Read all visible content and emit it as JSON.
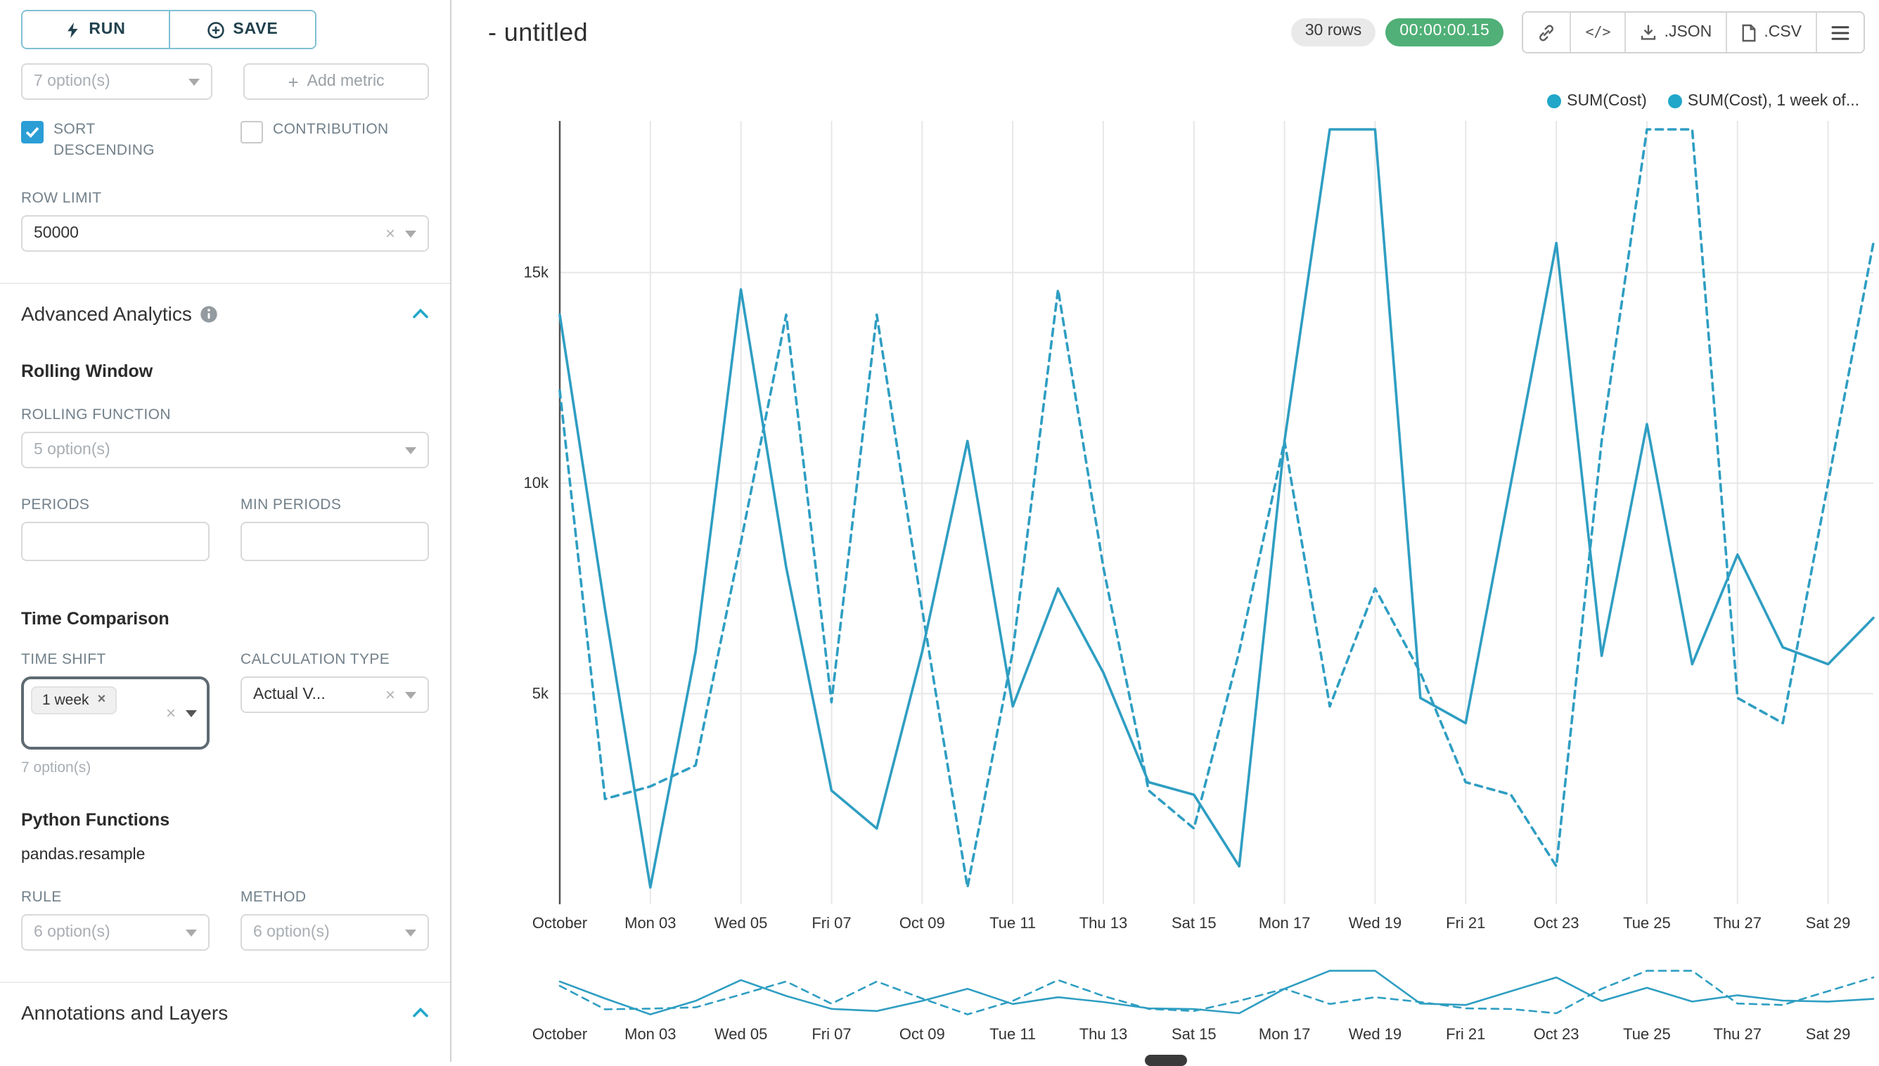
{
  "colors": {
    "accent": "#20a7c9",
    "line": "#2f9ec2",
    "checkbox": "#2b9ed6",
    "success_badge": "#50b077",
    "grid": "#e7e7e7",
    "axis": "#4d4d4d"
  },
  "icons": {
    "plus": "+",
    "close": "×",
    "code": "</>"
  },
  "sidebar": {
    "run_label": "RUN",
    "save_label": "SAVE",
    "metric_select_placeholder": "7 option(s)",
    "add_metric_label": "Add metric",
    "sort_descending_label": "SORT DESCENDING",
    "sort_descending_checked": true,
    "contribution_label": "CONTRIBUTION",
    "contribution_checked": false,
    "row_limit_label": "ROW LIMIT",
    "row_limit_value": "50000",
    "advanced_analytics_title": "Advanced Analytics",
    "rolling_window_title": "Rolling Window",
    "rolling_function_label": "ROLLING FUNCTION",
    "rolling_function_placeholder": "5 option(s)",
    "periods_label": "PERIODS",
    "min_periods_label": "MIN PERIODS",
    "time_comparison_title": "Time Comparison",
    "time_shift_label": "TIME SHIFT",
    "time_shift_tag": "1 week",
    "time_shift_options_hint": "7 option(s)",
    "calculation_type_label": "CALCULATION TYPE",
    "calculation_type_value": "Actual V...",
    "python_functions_title": "Python Functions",
    "pandas_resample_label": "pandas.resample",
    "rule_label": "RULE",
    "rule_placeholder": "6 option(s)",
    "method_label": "METHOD",
    "method_placeholder": "6 option(s)",
    "annotations_title": "Annotations and Layers"
  },
  "header": {
    "title": "- untitled",
    "rows_badge": "30 rows",
    "timer_badge": "00:00:00.15",
    "json_label": ".JSON",
    "csv_label": ".CSV"
  },
  "chart_data": {
    "type": "line",
    "title": "",
    "x_unit": "daily, Oct 01 - Oct 30",
    "tick_labels": [
      "October",
      "Mon 03",
      "Wed 05",
      "Fri 07",
      "Oct 09",
      "Tue 11",
      "Thu 13",
      "Sat 15",
      "Mon 17",
      "Wed 19",
      "Fri 21",
      "Oct 23",
      "Tue 25",
      "Thu 27",
      "Sat 29"
    ],
    "y_tick_values": [
      5000,
      10000,
      15000
    ],
    "y_tick_labels": [
      "5k",
      "10k",
      "15k"
    ],
    "ylim": [
      0,
      18600
    ],
    "grid": true,
    "legend_position": "top-right",
    "legend": [
      "SUM(Cost)",
      "SUM(Cost), 1 week of..."
    ],
    "series": [
      {
        "name": "SUM(Cost)",
        "style": "solid",
        "values": [
          14000,
          7000,
          400,
          6000,
          14600,
          8000,
          2700,
          1800,
          6000,
          11000,
          4700,
          7500,
          5500,
          2900,
          2600,
          900,
          11000,
          18400,
          18400,
          4900,
          4300,
          10000,
          15700,
          5900,
          11400,
          5700,
          8300,
          6100,
          5700,
          6800
        ]
      },
      {
        "name": "SUM(Cost), 1 week of...",
        "style": "dashed",
        "values": [
          12200,
          2500,
          2800,
          3300,
          8600,
          14000,
          4800,
          14000,
          7000,
          400,
          6000,
          14600,
          8000,
          2700,
          1800,
          6000,
          11000,
          4700,
          7500,
          5500,
          2900,
          2600,
          900,
          11000,
          18400,
          18400,
          4900,
          4300,
          10000,
          15700
        ]
      }
    ]
  }
}
